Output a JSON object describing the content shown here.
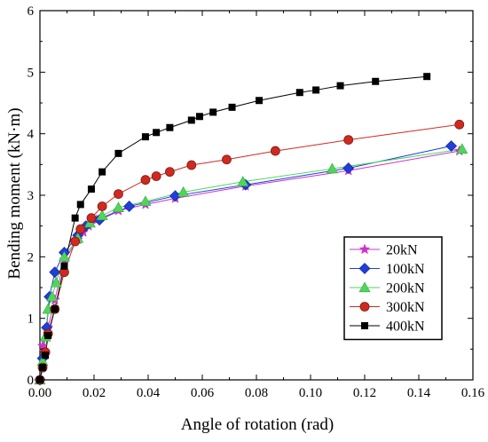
{
  "chart_data": {
    "type": "line",
    "title": "",
    "xlabel": "Angle of rotation (rad)",
    "ylabel": "Bending moment (kN·m)",
    "xlim": [
      0,
      0.16
    ],
    "ylim": [
      0,
      6
    ],
    "xticks": [
      "0.00",
      "0.02",
      "0.04",
      "0.06",
      "0.08",
      "0.10",
      "0.12",
      "0.14",
      "0.16"
    ],
    "yticks": [
      "0",
      "1",
      "2",
      "3",
      "4",
      "5",
      "6"
    ],
    "grid": false,
    "legend": {
      "position": "bottom-right"
    },
    "series": [
      {
        "name": "20kN",
        "color": "#cc33cc",
        "marker": "star",
        "x": [
          0.0,
          0.001,
          0.003,
          0.0055,
          0.009,
          0.014,
          0.016,
          0.018,
          0.021,
          0.029,
          0.039,
          0.05,
          0.076,
          0.114,
          0.155
        ],
        "y": [
          0.0,
          0.55,
          0.85,
          1.3,
          1.95,
          2.28,
          2.4,
          2.5,
          2.6,
          2.75,
          2.85,
          2.95,
          3.15,
          3.4,
          3.72
        ]
      },
      {
        "name": "100kN",
        "color": "#1f3fd6",
        "marker": "diamond",
        "x": [
          0.0,
          0.001,
          0.0025,
          0.0035,
          0.0055,
          0.009,
          0.014,
          0.017,
          0.022,
          0.033,
          0.05,
          0.076,
          0.114,
          0.152
        ],
        "y": [
          0.0,
          0.35,
          0.85,
          1.35,
          1.75,
          2.07,
          2.35,
          2.5,
          2.6,
          2.82,
          2.99,
          3.17,
          3.44,
          3.8
        ]
      },
      {
        "name": "200kN",
        "color": "#4fd65a",
        "marker": "triangle",
        "x": [
          0.0,
          0.001,
          0.002,
          0.003,
          0.0045,
          0.006,
          0.009,
          0.014,
          0.0185,
          0.023,
          0.029,
          0.039,
          0.053,
          0.075,
          0.108,
          0.156
        ],
        "y": [
          0.0,
          0.3,
          0.7,
          1.15,
          1.35,
          1.58,
          2.0,
          2.3,
          2.55,
          2.67,
          2.8,
          2.9,
          3.05,
          3.22,
          3.43,
          3.75
        ]
      },
      {
        "name": "300kN",
        "color": "#d02a20",
        "marker": "circle",
        "x": [
          0.0,
          0.001,
          0.002,
          0.003,
          0.0055,
          0.009,
          0.013,
          0.015,
          0.019,
          0.023,
          0.029,
          0.039,
          0.043,
          0.048,
          0.056,
          0.069,
          0.087,
          0.114,
          0.155
        ],
        "y": [
          0.0,
          0.2,
          0.45,
          0.75,
          1.15,
          1.75,
          2.25,
          2.45,
          2.63,
          2.82,
          3.02,
          3.25,
          3.31,
          3.38,
          3.49,
          3.58,
          3.72,
          3.9,
          4.15
        ]
      },
      {
        "name": "400kN",
        "color": "#000000",
        "marker": "square",
        "x": [
          0.0,
          0.001,
          0.002,
          0.003,
          0.0055,
          0.009,
          0.013,
          0.015,
          0.019,
          0.023,
          0.029,
          0.039,
          0.043,
          0.048,
          0.056,
          0.059,
          0.064,
          0.071,
          0.081,
          0.096,
          0.102,
          0.111,
          0.124,
          0.143
        ],
        "y": [
          0.0,
          0.2,
          0.4,
          0.72,
          1.15,
          1.85,
          2.63,
          2.85,
          3.1,
          3.38,
          3.68,
          3.95,
          4.02,
          4.1,
          4.22,
          4.28,
          4.35,
          4.43,
          4.54,
          4.67,
          4.71,
          4.78,
          4.85,
          4.93
        ]
      }
    ]
  }
}
